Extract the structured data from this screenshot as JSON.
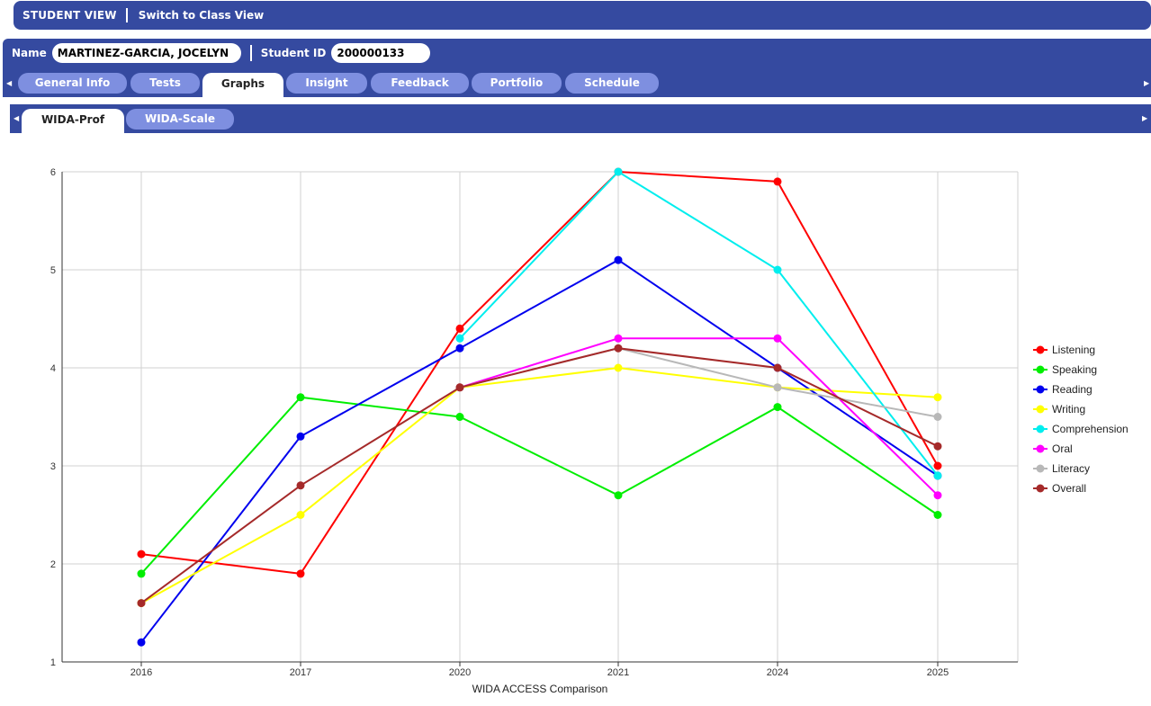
{
  "topbar": {
    "mode": "STUDENT VIEW",
    "switch_label": "Switch to Class View"
  },
  "student": {
    "name_label": "Name",
    "name_value": "MARTINEZ-GARCIA, JOCELYN",
    "id_label": "Student ID",
    "id_value": "200000133"
  },
  "tabs": [
    {
      "label": "General Info",
      "active": false
    },
    {
      "label": "Tests",
      "active": false
    },
    {
      "label": "Graphs",
      "active": true
    },
    {
      "label": "Insight",
      "active": false
    },
    {
      "label": "Feedback",
      "active": false
    },
    {
      "label": "Portfolio",
      "active": false
    },
    {
      "label": "Schedule",
      "active": false
    }
  ],
  "subtabs": [
    {
      "label": "WIDA-Prof",
      "active": true
    },
    {
      "label": "WIDA-Scale",
      "active": false
    }
  ],
  "chart_data": {
    "type": "line",
    "title": "",
    "xlabel": "WIDA ACCESS Comparison",
    "ylabel": "",
    "ylim": [
      1,
      6
    ],
    "yticks": [
      1,
      2,
      3,
      4,
      5,
      6
    ],
    "categories": [
      "2016",
      "2017",
      "2020",
      "2021",
      "2024",
      "2025"
    ],
    "grid": true,
    "legend_position": "right",
    "series": [
      {
        "name": "Listening",
        "color": "#ff0000",
        "values": [
          2.1,
          1.9,
          4.4,
          6.0,
          5.9,
          3.0
        ]
      },
      {
        "name": "Speaking",
        "color": "#00ee00",
        "values": [
          1.9,
          3.7,
          3.5,
          2.7,
          3.6,
          2.5
        ]
      },
      {
        "name": "Reading",
        "color": "#0000ee",
        "values": [
          1.2,
          3.3,
          4.2,
          5.1,
          4.0,
          2.9
        ]
      },
      {
        "name": "Writing",
        "color": "#ffff00",
        "values": [
          1.6,
          2.5,
          3.8,
          4.0,
          3.8,
          3.7
        ]
      },
      {
        "name": "Comprehension",
        "color": "#00eeee",
        "values": [
          null,
          null,
          4.3,
          6.0,
          5.0,
          2.9
        ]
      },
      {
        "name": "Oral",
        "color": "#ff00ff",
        "values": [
          null,
          null,
          3.8,
          4.3,
          4.3,
          2.7
        ]
      },
      {
        "name": "Literacy",
        "color": "#b8b8b8",
        "values": [
          null,
          null,
          3.8,
          4.2,
          3.8,
          3.5
        ]
      },
      {
        "name": "Overall",
        "color": "#a52a2a",
        "values": [
          1.6,
          2.8,
          3.8,
          4.2,
          4.0,
          3.2
        ]
      }
    ]
  }
}
